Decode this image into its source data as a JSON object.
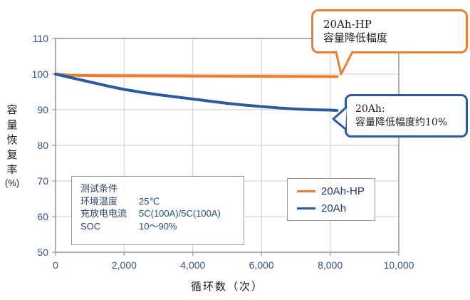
{
  "chart_data": {
    "type": "line",
    "title": "",
    "xlabel": "循环数（次）",
    "ylabel": "容量恢复率",
    "ylabel_unit": "(%)",
    "xlim": [
      0,
      10000
    ],
    "ylim": [
      50,
      110
    ],
    "xticks": [
      0,
      2000,
      4000,
      6000,
      8000,
      10000
    ],
    "xtick_labels": [
      "0",
      "2,000",
      "4,000",
      "6,000",
      "8,000",
      "10,000"
    ],
    "yticks": [
      50,
      60,
      70,
      80,
      90,
      100,
      110
    ],
    "ytick_labels": [
      "50",
      "60",
      "70",
      "80",
      "90",
      "100",
      "110"
    ],
    "grid": true,
    "grid_color": "#cdcdcd",
    "axis_color": "#9a9a9a",
    "tick_label_color": "#36507f",
    "legend_position": "inside-lower-right",
    "series": [
      {
        "name": "20Ah-HP",
        "color": "#ed7d31",
        "x": [
          0,
          400,
          1200,
          2500,
          4000,
          6000,
          8200
        ],
        "y": [
          100,
          99.7,
          99.55,
          99.5,
          99.45,
          99.4,
          99.3
        ]
      },
      {
        "name": "20Ah",
        "color": "#2e5b9d",
        "x": [
          0,
          500,
          1000,
          1500,
          2000,
          2500,
          3000,
          3500,
          4000,
          4500,
          5000,
          5500,
          6000,
          6500,
          7000,
          7500,
          8000,
          8200
        ],
        "y": [
          100,
          98.9,
          97.8,
          96.7,
          95.7,
          94.9,
          94.2,
          93.6,
          93.0,
          92.4,
          91.8,
          91.3,
          90.9,
          90.5,
          90.2,
          90.0,
          89.9,
          89.8
        ]
      }
    ]
  },
  "callouts": {
    "hp": {
      "line1": "20Ah-HP",
      "line2": "容量降低幅度",
      "color": "#ed7d31"
    },
    "std": {
      "line1": "20Ah:",
      "line2": "容量降低幅度约10%",
      "color": "#2e5b9d"
    }
  },
  "conditions": {
    "title": "测试条件",
    "rows": [
      {
        "label": "环境温度",
        "value": "25℃"
      },
      {
        "label": "充放电电流",
        "value": "5C(100A)/5C(100A)"
      },
      {
        "label": "SOC",
        "value": "10～90%"
      }
    ]
  },
  "legend": {
    "items": [
      {
        "label": "20Ah-HP",
        "color": "#ed7d31"
      },
      {
        "label": "20Ah",
        "color": "#2e5b9d"
      }
    ]
  }
}
